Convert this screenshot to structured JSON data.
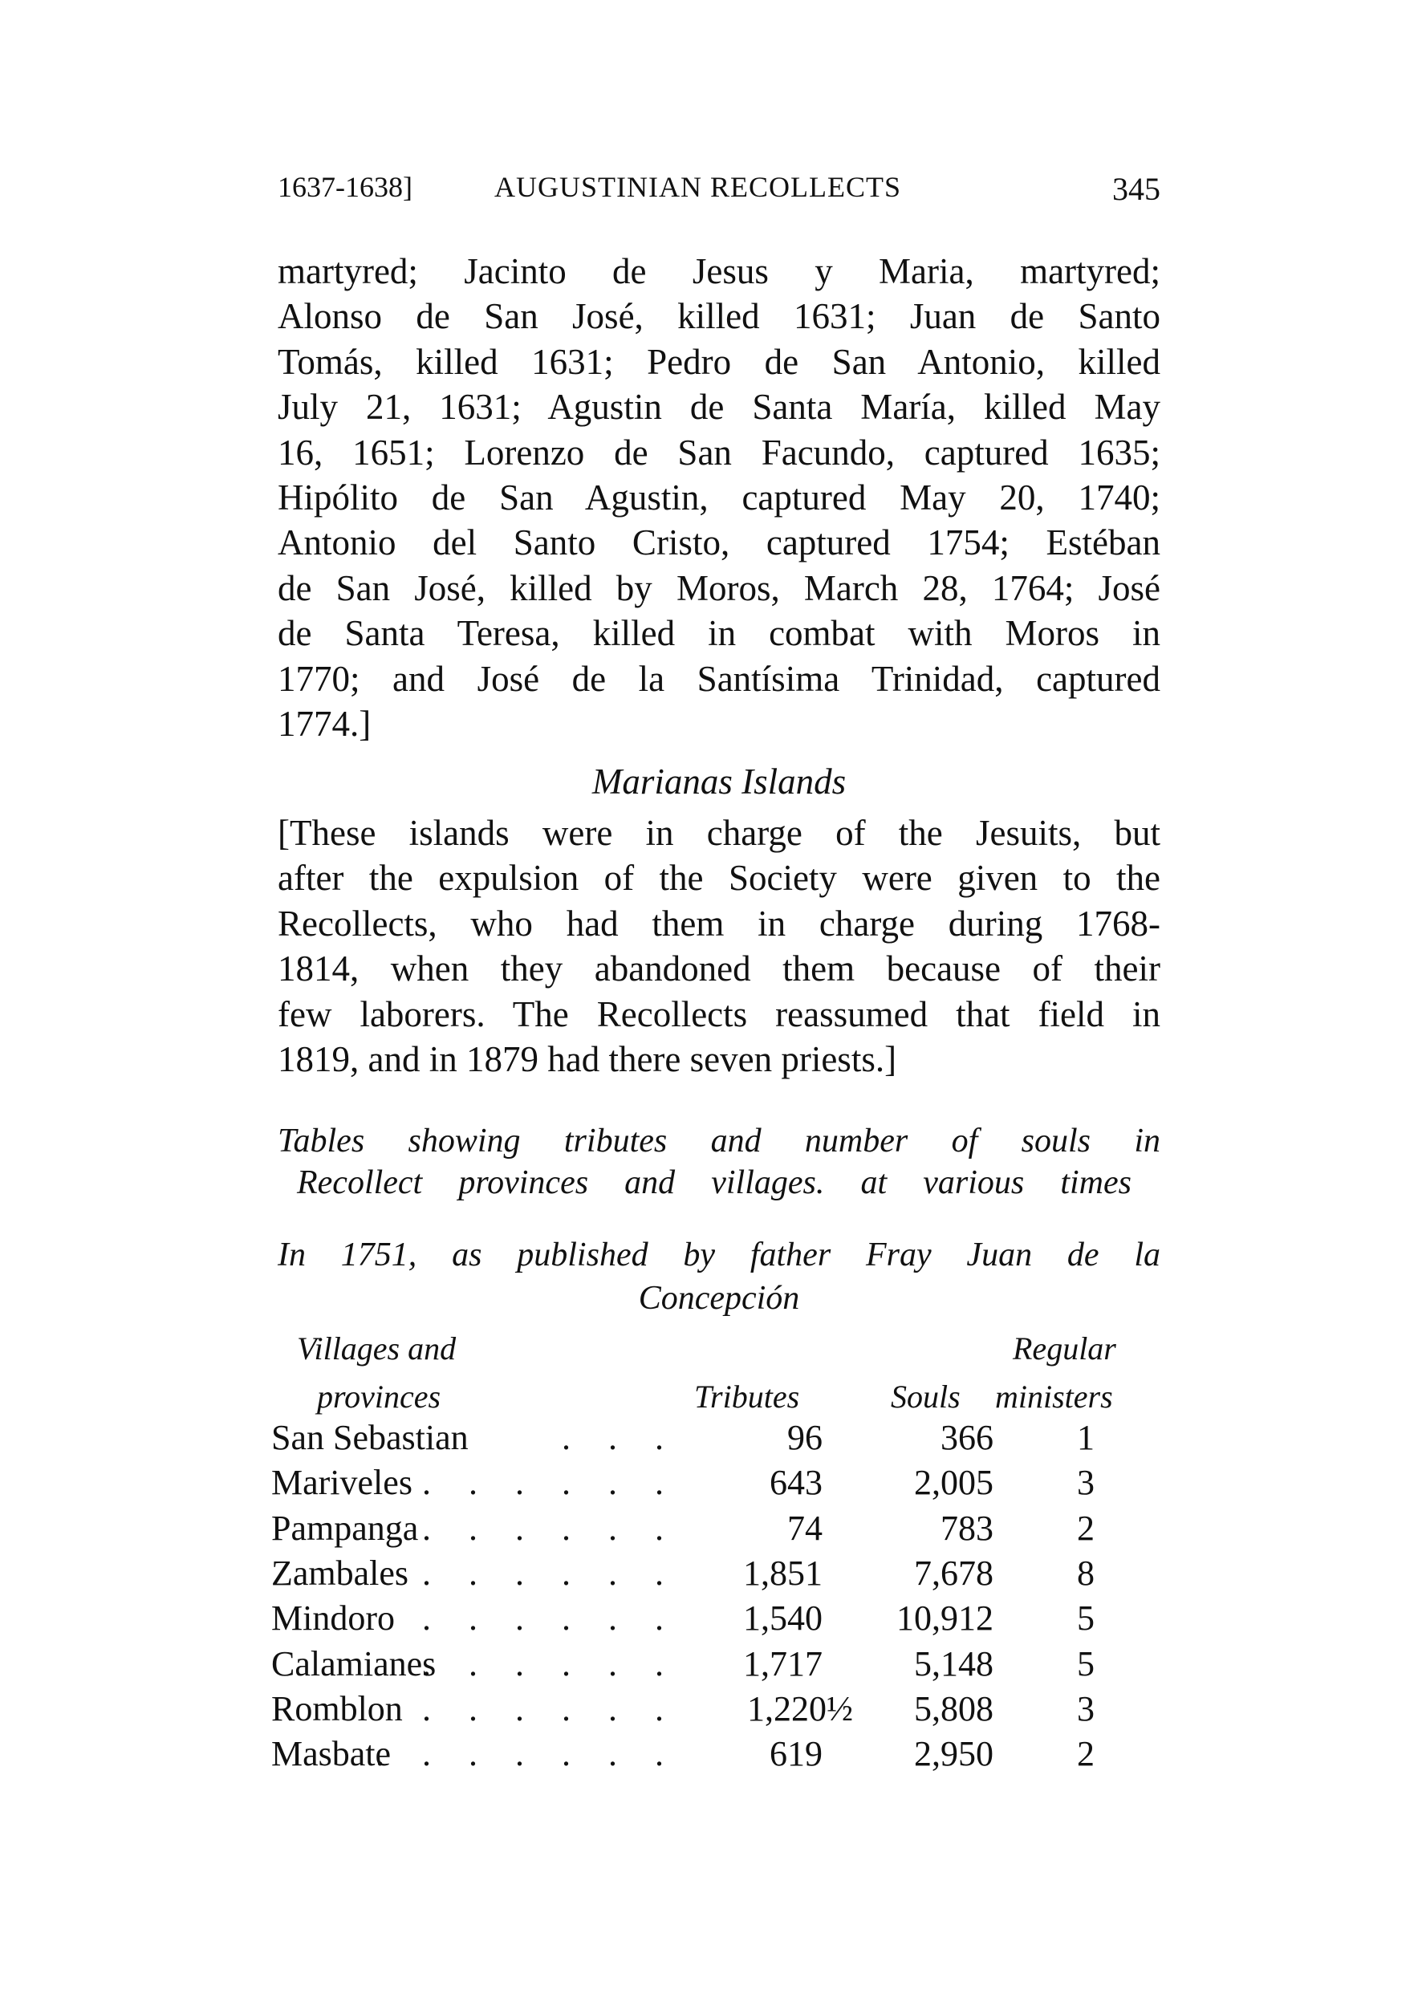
{
  "header": {
    "years": "1637-1638]",
    "title": "AUGUSTINIAN RECOLLECTS",
    "page_number": "345"
  },
  "body_lines": [
    "martyred; Jacinto de Jesus y Maria, martyred;",
    "Alonso de San José, killed 1631; Juan de Santo",
    "Tomás, killed 1631; Pedro de San Antonio, killed",
    "July 21, 1631; Agustin de Santa María, killed May",
    "16, 1651; Lorenzo de San Facundo, captured 1635;",
    "Hipólito de San Agustin, captured May 20, 1740;",
    "Antonio del Santo Cristo, captured 1754; Estéban",
    "de San José, killed by Moros, March 28, 1764; José",
    "de Santa Teresa, killed in combat with Moros in",
    "1770; and José de la Santísima Trinidad, captured",
    "1774.]"
  ],
  "section_title": "Marianas Islands",
  "paragraph_lines": [
    "[These islands were in charge of the Jesuits, but",
    "after the expulsion of the Society were given to the",
    "Recollects, who had them in charge during 1768-",
    "1814, when they abandoned them because of their",
    "few laborers. The Recollects reassumed that field in",
    "1819, and in 1879 had there seven priests.]"
  ],
  "caption_lines": [
    "Tables showing tributes and number of souls in",
    "Recollect provinces and villages. at various times"
  ],
  "subcaption_lines": [
    "In 1751, as published by father Fray Juan de la",
    "Concepción"
  ],
  "table": {
    "headers": {
      "villages_1": "Villages and",
      "villages_2": "provinces",
      "tributes": "Tributes",
      "souls": "Souls",
      "ministers_1": "Regular",
      "ministers_2": "ministers"
    },
    "rows": [
      {
        "name": "San Sebastian",
        "dots": ". . .",
        "tributes": "96",
        "souls": "366",
        "ministers": "1"
      },
      {
        "name": "Mariveles",
        "dots": ". . . . . .",
        "tributes": "643",
        "souls": "2,005",
        "ministers": "3"
      },
      {
        "name": "Pampanga",
        "dots": ". . . . . .",
        "tributes": "74",
        "souls": "783",
        "ministers": "2"
      },
      {
        "name": "Zambales",
        "dots": ". . . . . .",
        "tributes": "1,851",
        "souls": "7,678",
        "ministers": "8"
      },
      {
        "name": "Mindoro",
        "dots": ". . . . . .",
        "tributes": "1,540",
        "souls": "10,912",
        "ministers": "5"
      },
      {
        "name": "Calamianes",
        "dots": ". . . . . .",
        "tributes": "1,717",
        "souls": "5,148",
        "ministers": "5"
      },
      {
        "name": "Romblon",
        "dots": ". . . . . .",
        "tributes": "1,220½",
        "souls": "5,808",
        "ministers": "3"
      },
      {
        "name": "Masbate",
        "dots": ". . . . . . .",
        "tributes": "619",
        "souls": "2,950",
        "ministers": "2"
      }
    ]
  }
}
